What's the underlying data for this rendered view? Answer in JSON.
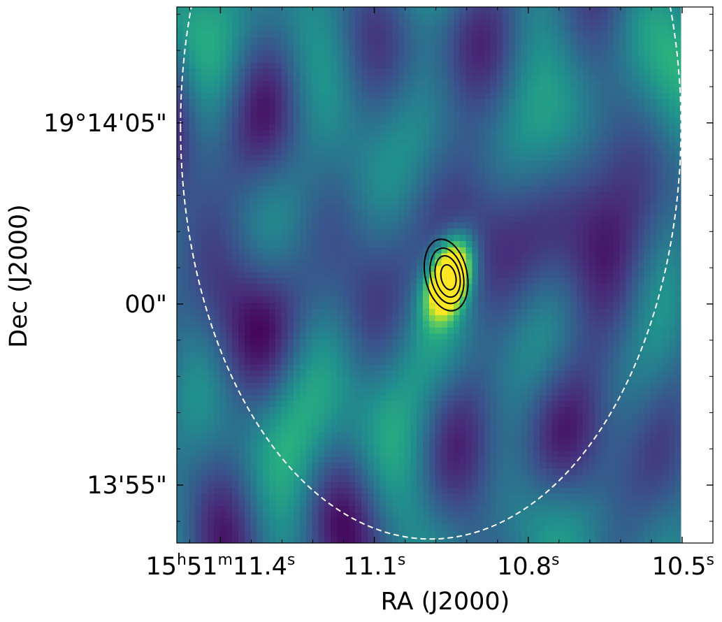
{
  "chart_data": {
    "type": "heatmap",
    "colormap": "viridis",
    "xlabel": "RA (J2000)",
    "ylabel": "Dec (J2000)",
    "x_coordinate": "RA (J2000)",
    "y_coordinate": "Dec (J2000)",
    "x_ticks": [
      {
        "ra_seconds": 11.4,
        "parts": [
          [
            "15",
            ""
          ],
          [
            "h",
            "sup"
          ],
          [
            "51",
            ""
          ],
          [
            "m",
            "sup"
          ],
          [
            "11.4",
            ""
          ],
          [
            "s",
            "sup"
          ]
        ]
      },
      {
        "ra_seconds": 11.1,
        "parts": [
          [
            "11.1",
            ""
          ],
          [
            "s",
            "sup"
          ]
        ]
      },
      {
        "ra_seconds": 10.8,
        "parts": [
          [
            "10.8",
            ""
          ],
          [
            "s",
            "sup"
          ]
        ]
      },
      {
        "ra_seconds": 10.5,
        "parts": [
          [
            "10.5",
            ""
          ],
          [
            "s",
            "sup"
          ]
        ]
      }
    ],
    "y_ticks": [
      {
        "dec_arcsec_offset": 5,
        "label": "19°14'05\""
      },
      {
        "dec_arcsec_offset": 0,
        "label": "00\""
      },
      {
        "dec_arcsec_offset": -5,
        "label": "13'55\""
      }
    ],
    "y_reference": "19°14'00\"",
    "x_range_ra_seconds": [
      11.485,
      10.44
    ],
    "y_range_dec_arcsec_offset": [
      -6.6,
      8.2
    ],
    "image_extent_ra_seconds": [
      11.485,
      10.502
    ],
    "source": {
      "ra_seconds": 10.96,
      "dec_arcsec_offset": 0.8,
      "peak_level": 1.0
    },
    "contours": {
      "color": "#000000",
      "levels_relative_to_peak": [
        0.55,
        0.7,
        0.82,
        0.93
      ],
      "count": 4
    },
    "beam_ellipse": {
      "center_ra_seconds": 10.99,
      "center_dec_arcsec_offset": 4.9,
      "style": "dashed",
      "color": "#ffffff"
    }
  }
}
